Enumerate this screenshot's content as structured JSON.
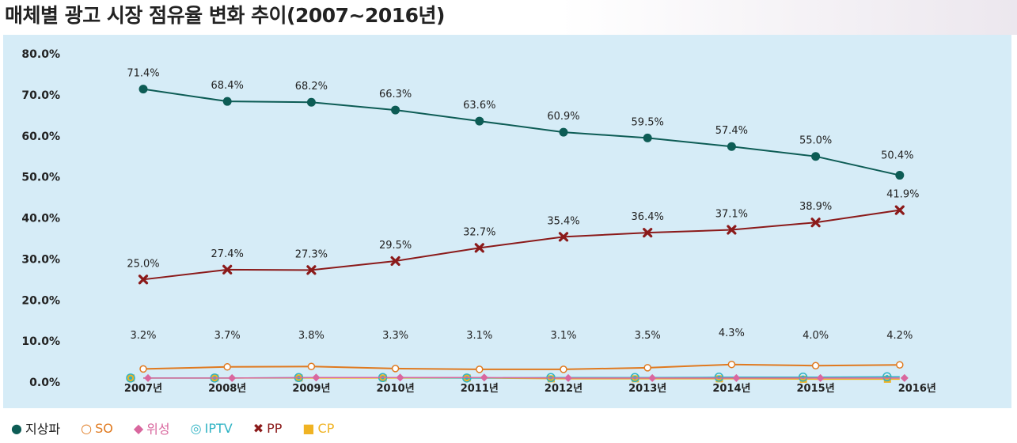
{
  "title": "매체별 광고 시장 점유율 변화 추이(2007~2016년)",
  "chart_data": {
    "type": "line",
    "title": "매체별 광고 시장 점유율 변화 추이(2007~2016년)",
    "xlabel": "",
    "ylabel": "",
    "categories": [
      "2007년",
      "2008년",
      "2009년",
      "2010년",
      "2011년",
      "2012년",
      "2013년",
      "2014년",
      "2015년",
      "2016년"
    ],
    "yticks": [
      "80.0%",
      "70.0%",
      "60.0%",
      "50.0%",
      "40.0%",
      "30.0%",
      "20.0%",
      "10.0%",
      "0.0%"
    ],
    "ylim": [
      0,
      80
    ],
    "grid": false,
    "legend_position": "bottom-left",
    "series": [
      {
        "name": "지상파",
        "color": "#0d5c55",
        "marker": "dot",
        "values": [
          71.4,
          68.4,
          68.2,
          66.3,
          63.6,
          60.9,
          59.5,
          57.4,
          55.0,
          50.4
        ],
        "labels": [
          "71.4%",
          "68.4%",
          "68.2%",
          "66.3%",
          "63.6%",
          "60.9%",
          "59.5%",
          "57.4%",
          "55.0%",
          "50.4%"
        ]
      },
      {
        "name": "PP",
        "color": "#8b1a1a",
        "marker": "x",
        "values": [
          25.0,
          27.4,
          27.3,
          29.5,
          32.7,
          35.4,
          36.4,
          37.1,
          38.9,
          41.9
        ],
        "labels": [
          "25.0%",
          "27.4%",
          "27.3%",
          "29.5%",
          "32.7%",
          "35.4%",
          "36.4%",
          "37.1%",
          "38.9%",
          "41.9%"
        ]
      },
      {
        "name": "SO",
        "color": "#e07a20",
        "marker": "ring",
        "values": [
          3.2,
          3.7,
          3.8,
          3.3,
          3.1,
          3.1,
          3.5,
          4.3,
          4.0,
          4.2
        ],
        "labels": [
          "3.2%",
          "3.7%",
          "3.8%",
          "3.3%",
          "3.1%",
          "3.1%",
          "3.5%",
          "4.3%",
          "4.0%",
          "4.2%"
        ]
      },
      {
        "name": "위성",
        "color": "#d9679e",
        "marker": "diamond",
        "values": [
          1.0,
          1.0,
          1.1,
          1.1,
          1.1,
          1.0,
          1.0,
          1.0,
          1.0,
          1.0
        ],
        "labels": []
      },
      {
        "name": "IPTV",
        "color": "#2fb3c4",
        "marker": "target",
        "values": [
          1.0,
          1.0,
          1.1,
          1.1,
          1.0,
          1.1,
          1.1,
          1.2,
          1.2,
          1.3
        ],
        "labels": []
      },
      {
        "name": "CP",
        "color": "#f0b323",
        "marker": "square",
        "values": [
          1.0,
          1.0,
          1.0,
          1.0,
          1.0,
          0.8,
          0.8,
          0.8,
          0.7,
          0.7
        ],
        "labels": []
      }
    ]
  },
  "legend": [
    {
      "symbol": "●",
      "label": "지상파",
      "color": "#0d5c55",
      "label_color": "#222222"
    },
    {
      "symbol": "○",
      "label": "SO",
      "color": "#e07a20",
      "label_color": "#e07a20"
    },
    {
      "symbol": "◆",
      "label": "위성",
      "color": "#d9679e",
      "label_color": "#d9679e"
    },
    {
      "symbol": "◎",
      "label": "IPTV",
      "color": "#2fb3c4",
      "label_color": "#2fb3c4"
    },
    {
      "symbol": "✖",
      "label": "PP",
      "color": "#8b1a1a",
      "label_color": "#8b1a1a"
    },
    {
      "symbol": "■",
      "label": "CP",
      "color": "#f0b323",
      "label_color": "#f0b323"
    }
  ]
}
